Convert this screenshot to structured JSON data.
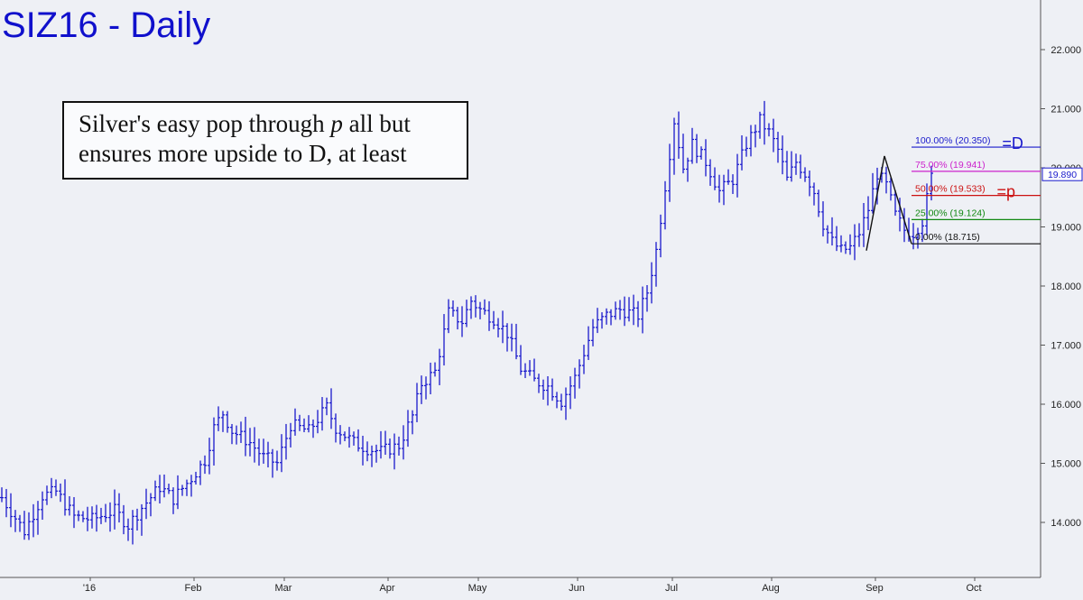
{
  "title": "SIZ16 - Daily",
  "annotation": {
    "line1_a": "Silver's easy pop through ",
    "line1_italic": "p",
    "line1_b": " all but",
    "line2": "ensures more upside to D, at least"
  },
  "colors": {
    "background": "#eef0f5",
    "bars": "#1a1acc",
    "axis": "#555555"
  },
  "chart_data": {
    "type": "bar",
    "ylim": [
      13.6,
      22.4
    ],
    "y_ticks": [
      "14.000",
      "15.000",
      "16.000",
      "17.000",
      "18.000",
      "19.000",
      "20.000",
      "21.000",
      "22.000"
    ],
    "x_ticks": [
      {
        "label": "'16",
        "day": 20
      },
      {
        "label": "Feb",
        "day": 43
      },
      {
        "label": "Mar",
        "day": 63
      },
      {
        "label": "Apr",
        "day": 86
      },
      {
        "label": "May",
        "day": 106
      },
      {
        "label": "Jun",
        "day": 128
      },
      {
        "label": "Jul",
        "day": 149
      },
      {
        "label": "Aug",
        "day": 171
      },
      {
        "label": "Sep",
        "day": 194
      },
      {
        "label": "Oct",
        "day": 216
      }
    ],
    "last_price": "19.890",
    "price_points": [
      [
        0,
        14.42
      ],
      [
        5,
        13.85
      ],
      [
        9,
        14.45
      ],
      [
        12,
        14.52
      ],
      [
        16,
        14.1
      ],
      [
        20,
        14.05
      ],
      [
        25,
        14.2
      ],
      [
        28,
        13.95
      ],
      [
        31,
        14.25
      ],
      [
        35,
        14.6
      ],
      [
        38,
        14.4
      ],
      [
        42,
        14.75
      ],
      [
        45,
        15.05
      ],
      [
        47,
        15.6
      ],
      [
        49,
        15.85
      ],
      [
        51,
        15.55
      ],
      [
        55,
        15.35
      ],
      [
        58,
        15.1
      ],
      [
        61,
        15.0
      ],
      [
        64,
        15.65
      ],
      [
        68,
        15.55
      ],
      [
        72,
        15.95
      ],
      [
        74,
        15.6
      ],
      [
        78,
        15.35
      ],
      [
        81,
        15.25
      ],
      [
        84,
        15.2
      ],
      [
        88,
        15.3
      ],
      [
        91,
        15.8
      ],
      [
        93,
        16.35
      ],
      [
        96,
        16.55
      ],
      [
        99,
        17.55
      ],
      [
        102,
        17.4
      ],
      [
        104,
        17.75
      ],
      [
        106,
        17.6
      ],
      [
        109,
        17.45
      ],
      [
        112,
        17.2
      ],
      [
        115,
        16.6
      ],
      [
        118,
        16.4
      ],
      [
        121,
        16.3
      ],
      [
        124,
        16.05
      ],
      [
        127,
        16.45
      ],
      [
        131,
        17.3
      ],
      [
        134,
        17.5
      ],
      [
        137,
        17.6
      ],
      [
        141,
        17.5
      ],
      [
        143,
        17.9
      ],
      [
        145,
        18.6
      ],
      [
        147,
        19.7
      ],
      [
        149,
        20.8
      ],
      [
        151,
        20.0
      ],
      [
        153,
        20.4
      ],
      [
        156,
        20.1
      ],
      [
        159,
        19.6
      ],
      [
        162,
        19.8
      ],
      [
        165,
        20.4
      ],
      [
        168,
        20.8
      ],
      [
        170,
        20.6
      ],
      [
        172,
        20.3
      ],
      [
        174,
        19.8
      ],
      [
        176,
        20.1
      ],
      [
        178,
        19.9
      ],
      [
        180,
        19.6
      ],
      [
        182,
        19.05
      ],
      [
        184,
        18.75
      ],
      [
        186,
        18.6
      ],
      [
        188,
        18.65
      ],
      [
        190,
        18.9
      ],
      [
        192,
        19.3
      ],
      [
        194,
        19.9
      ],
      [
        196,
        19.7
      ],
      [
        198,
        19.2
      ],
      [
        200,
        18.95
      ],
      [
        202,
        18.9
      ],
      [
        204,
        19.1
      ],
      [
        206,
        19.85
      ]
    ],
    "pattern_points": [
      {
        "day": 192,
        "price": 18.6
      },
      {
        "day": 196,
        "price": 20.2
      },
      {
        "day": 202,
        "price": 18.715
      }
    ],
    "fib_levels": [
      {
        "price": 20.35,
        "label": "100.00% (20.350)",
        "tag": "=D",
        "color": "#1a1acc"
      },
      {
        "price": 19.941,
        "label": "75.00% (19.941)",
        "tag": "",
        "color": "#cc22cc"
      },
      {
        "price": 19.533,
        "label": "50.00% (19.533)",
        "tag": "=p",
        "color": "#cc1111"
      },
      {
        "price": 19.124,
        "label": "25.00% (19.124)",
        "tag": "",
        "color": "#118811"
      },
      {
        "price": 18.715,
        "label": "0.00% (18.715)",
        "tag": "",
        "color": "#111111"
      }
    ]
  }
}
